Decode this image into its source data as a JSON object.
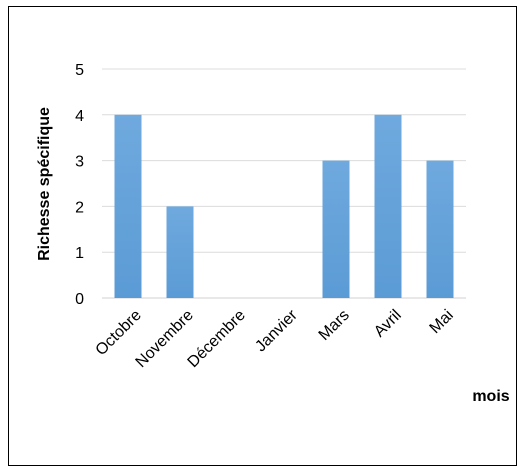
{
  "chart_data": {
    "type": "bar",
    "categories": [
      "Octobre",
      "Novembre",
      "Décembre",
      "Janvier",
      "Mars",
      "Avril",
      "Mai"
    ],
    "values": [
      4,
      2,
      0,
      0,
      3,
      4,
      3
    ],
    "title": "",
    "xlabel": "mois",
    "ylabel": "Richesse spécifique",
    "ylim": [
      0,
      5
    ],
    "yticks": [
      "0",
      "1",
      "2",
      "3",
      "4",
      "5"
    ],
    "grid": true,
    "bar_color": "#5b9bd5",
    "bar_color_top": "#6fa9de"
  }
}
